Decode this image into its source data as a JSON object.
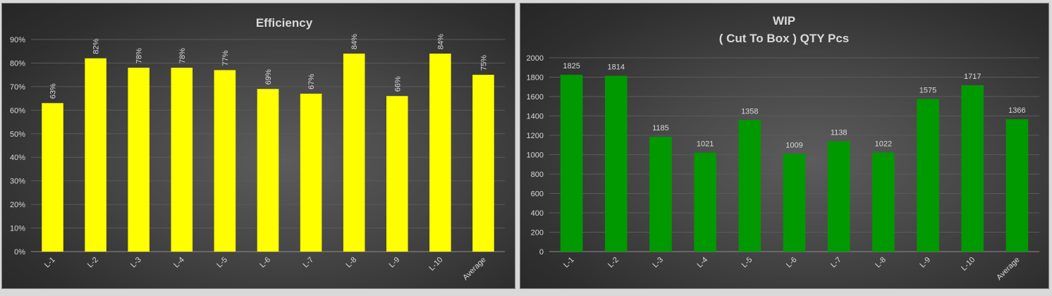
{
  "chart_data": [
    {
      "type": "bar",
      "title": "Efficiency",
      "categories": [
        "L-1",
        "L-2",
        "L-3",
        "L-4",
        "L-5",
        "L-6",
        "L-7",
        "L-8",
        "L-9",
        "L-10",
        "Average"
      ],
      "values": [
        63,
        82,
        78,
        78,
        77,
        69,
        67,
        84,
        66,
        84,
        75
      ],
      "value_labels": [
        "63%",
        "82%",
        "78%",
        "78%",
        "77%",
        "69%",
        "67%",
        "84%",
        "66%",
        "84%",
        "75%"
      ],
      "ylim": [
        0,
        90
      ],
      "yticks": [
        0,
        10,
        20,
        30,
        40,
        50,
        60,
        70,
        80,
        90
      ],
      "ytick_labels": [
        "0%",
        "10%",
        "20%",
        "30%",
        "40%",
        "50%",
        "60%",
        "70%",
        "80%",
        "90%"
      ],
      "bar_color": "#ffff00",
      "grid": true,
      "legend": "none"
    },
    {
      "type": "bar",
      "title_lines": [
        "WIP",
        "( Cut To Box ) QTY Pcs"
      ],
      "categories": [
        "L-1",
        "L-2",
        "L-3",
        "L-4",
        "L-5",
        "L-6",
        "L-7",
        "L-8",
        "L-9",
        "L-10",
        "Average"
      ],
      "values": [
        1825,
        1814,
        1185,
        1021,
        1358,
        1009,
        1138,
        1022,
        1575,
        1717,
        1366
      ],
      "value_labels": [
        "1825",
        "1814",
        "1185",
        "1021",
        "1358",
        "1009",
        "1138",
        "1022",
        "1575",
        "1717",
        "1366"
      ],
      "ylim": [
        0,
        2000
      ],
      "yticks": [
        0,
        200,
        400,
        600,
        800,
        1000,
        1200,
        1400,
        1600,
        1800,
        2000
      ],
      "ytick_labels": [
        "0",
        "200",
        "400",
        "600",
        "800",
        "1000",
        "1200",
        "1400",
        "1600",
        "1800",
        "2000"
      ],
      "bar_color": "#009900",
      "grid": true,
      "legend": "none"
    }
  ]
}
